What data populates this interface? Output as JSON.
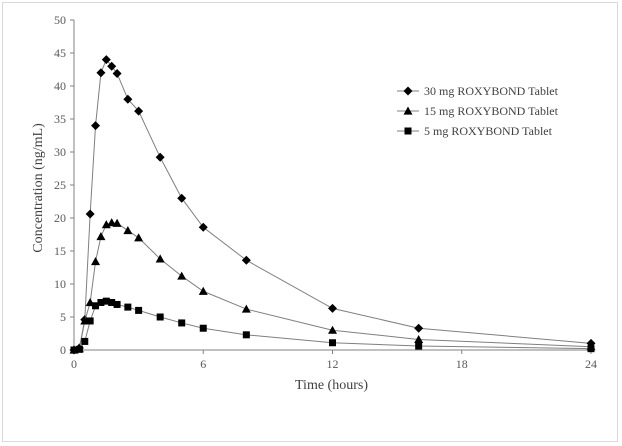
{
  "chart_data": {
    "type": "line",
    "title": "",
    "xlabel": "Time (hours)",
    "ylabel": "Concentration (ng/mL)",
    "xlim": [
      0,
      24
    ],
    "ylim": [
      0,
      50
    ],
    "xticks": [
      0,
      6,
      12,
      18,
      24
    ],
    "yticks": [
      0,
      5,
      10,
      15,
      20,
      25,
      30,
      35,
      40,
      45,
      50
    ],
    "grid": false,
    "legend_position": "right",
    "series": [
      {
        "name": "30 mg ROXYBOND Tablet",
        "marker": "diamond",
        "color": "#000000",
        "x": [
          0,
          0.25,
          0.5,
          0.75,
          1,
          1.25,
          1.5,
          1.75,
          2,
          2.5,
          3,
          4,
          5,
          6,
          8,
          12,
          16,
          24
        ],
        "y": [
          0,
          0.3,
          4.6,
          20.6,
          34,
          42,
          44,
          43,
          41.9,
          38,
          36.2,
          29.2,
          23,
          18.6,
          13.6,
          6.3,
          3.3,
          1.0
        ]
      },
      {
        "name": "15 mg ROXYBOND Tablet",
        "marker": "triangle",
        "color": "#000000",
        "x": [
          0,
          0.25,
          0.5,
          0.75,
          1,
          1.25,
          1.5,
          1.75,
          2,
          2.5,
          3,
          4,
          5,
          6,
          8,
          12,
          16,
          24
        ],
        "y": [
          0,
          0.2,
          4.4,
          7.2,
          13.4,
          17.2,
          19,
          19.3,
          19.2,
          18.1,
          17,
          13.8,
          11.2,
          8.9,
          6.2,
          3.0,
          1.6,
          0.5
        ]
      },
      {
        "name": "5 mg ROXYBOND Tablet",
        "marker": "square",
        "color": "#000000",
        "x": [
          0,
          0.25,
          0.5,
          0.75,
          1,
          1.25,
          1.5,
          1.75,
          2,
          2.5,
          3,
          4,
          5,
          6,
          8,
          12,
          16,
          24
        ],
        "y": [
          0,
          0.1,
          1.3,
          4.4,
          6.7,
          7.2,
          7.4,
          7.2,
          6.9,
          6.5,
          6.0,
          5.0,
          4.1,
          3.3,
          2.3,
          1.1,
          0.6,
          0.2
        ]
      }
    ]
  }
}
